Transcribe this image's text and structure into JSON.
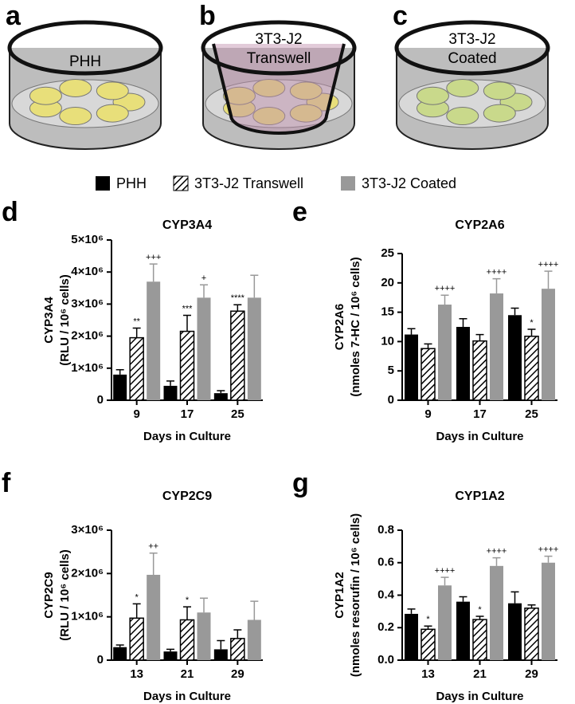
{
  "figure": {
    "panels": [
      "a",
      "b",
      "c"
    ],
    "illustration_labels": [
      [
        "PHH"
      ],
      [
        "3T3-J2",
        "Transwell"
      ],
      [
        "3T3-J2",
        "Coated"
      ]
    ]
  },
  "chart_data": [
    {
      "type": "bar",
      "panel": "d",
      "title": "CYP3A4",
      "ylabel": [
        "CYP3A4",
        "(RLU / 10⁶ cells)"
      ],
      "xlabel": "Days in Culture",
      "categories": [
        "9",
        "17",
        "25"
      ],
      "ylim": [
        0,
        5000000
      ],
      "yticks": [
        0,
        {
          "value": 1000000,
          "label": "1×10⁶"
        },
        {
          "value": 2000000,
          "label": "2×10⁶"
        },
        {
          "value": 3000000,
          "label": "3×10⁶"
        },
        {
          "value": 4000000,
          "label": "4×10⁶"
        },
        {
          "value": 5000000,
          "label": "5×10⁶"
        }
      ],
      "series": [
        {
          "name": "PHH",
          "color": "#000000",
          "hatch": false,
          "values": [
            800000,
            450000,
            220000
          ],
          "errors": [
            150000,
            150000,
            80000
          ],
          "marks": [
            null,
            null,
            null
          ]
        },
        {
          "name": "3T3-J2 Transwell",
          "color": "#000000",
          "hatch": true,
          "values": [
            1950000,
            2150000,
            2780000
          ],
          "errors": [
            300000,
            500000,
            200000
          ],
          "marks": [
            "**",
            "***",
            "****"
          ]
        },
        {
          "name": "3T3-J2 Coated",
          "color": "#999999",
          "hatch": false,
          "values": [
            3700000,
            3200000,
            3200000
          ],
          "errors": [
            550000,
            400000,
            700000
          ],
          "marks": [
            "+++",
            "+",
            null
          ]
        }
      ]
    },
    {
      "type": "bar",
      "panel": "e",
      "title": "CYP2A6",
      "ylabel": [
        "CYP2A6",
        "(nmoles 7-HC / 10⁶ cells)"
      ],
      "xlabel": "Days in Culture",
      "categories": [
        "9",
        "17",
        "25"
      ],
      "ylim": [
        0,
        25
      ],
      "yticks": [
        0,
        5,
        10,
        15,
        20,
        25
      ],
      "series": [
        {
          "name": "PHH",
          "color": "#000000",
          "hatch": false,
          "values": [
            11.2,
            12.5,
            14.5
          ],
          "errors": [
            1,
            1.4,
            1.2
          ],
          "marks": [
            null,
            null,
            null
          ]
        },
        {
          "name": "3T3-J2 Transwell",
          "color": "#000000",
          "hatch": true,
          "values": [
            8.8,
            10.1,
            10.9
          ],
          "errors": [
            0.8,
            1.1,
            1.2
          ],
          "marks": [
            null,
            null,
            "*"
          ]
        },
        {
          "name": "3T3-J2 Coated",
          "color": "#999999",
          "hatch": false,
          "values": [
            16.3,
            18.2,
            19
          ],
          "errors": [
            1.6,
            2.5,
            3
          ],
          "marks": [
            "++++",
            "++++",
            "++++"
          ]
        }
      ]
    },
    {
      "type": "bar",
      "panel": "f",
      "title": "CYP2C9",
      "ylabel": [
        "CYP2C9",
        "(RLU / 10⁶ cells)"
      ],
      "xlabel": "Days in Culture",
      "categories": [
        "13",
        "21",
        "29"
      ],
      "ylim": [
        0,
        3000000
      ],
      "yticks": [
        0,
        {
          "value": 1000000,
          "label": "1×10⁶"
        },
        {
          "value": 2000000,
          "label": "2×10⁶"
        },
        {
          "value": 3000000,
          "label": "3×10⁶"
        }
      ],
      "series": [
        {
          "name": "PHH",
          "color": "#000000",
          "hatch": false,
          "values": [
            300000,
            200000,
            250000
          ],
          "errors": [
            50000,
            50000,
            200000
          ],
          "marks": [
            null,
            null,
            null
          ]
        },
        {
          "name": "3T3-J2 Transwell",
          "color": "#000000",
          "hatch": true,
          "values": [
            970000,
            930000,
            500000
          ],
          "errors": [
            330000,
            300000,
            200000
          ],
          "marks": [
            "*",
            "*",
            null
          ]
        },
        {
          "name": "3T3-J2 Coated",
          "color": "#999999",
          "hatch": false,
          "values": [
            1970000,
            1100000,
            930000
          ],
          "errors": [
            500000,
            330000,
            430000
          ],
          "marks": [
            "++",
            null,
            null
          ]
        }
      ]
    },
    {
      "type": "bar",
      "panel": "g",
      "title": "CYP1A2",
      "ylabel": [
        "CYP1A2",
        "(nmoles resorufin / 10⁶ cells)"
      ],
      "xlabel": "Days in Culture",
      "categories": [
        "13",
        "21",
        "29"
      ],
      "ylim": [
        0,
        0.8
      ],
      "yticks": [
        {
          "value": 0,
          "label": "0.0"
        },
        0.2,
        0.4,
        0.6,
        0.8
      ],
      "series": [
        {
          "name": "PHH",
          "color": "#000000",
          "hatch": false,
          "values": [
            0.285,
            0.36,
            0.35
          ],
          "errors": [
            0.03,
            0.03,
            0.07
          ],
          "marks": [
            null,
            null,
            null
          ]
        },
        {
          "name": "3T3-J2 Transwell",
          "color": "#000000",
          "hatch": true,
          "values": [
            0.19,
            0.25,
            0.32
          ],
          "errors": [
            0.02,
            0.02,
            0.02
          ],
          "marks": [
            "*",
            "*",
            null
          ]
        },
        {
          "name": "3T3-J2 Coated",
          "color": "#999999",
          "hatch": false,
          "values": [
            0.46,
            0.58,
            0.6
          ],
          "errors": [
            0.05,
            0.05,
            0.04
          ],
          "marks": [
            "++++",
            "++++",
            "++++"
          ]
        }
      ]
    }
  ]
}
